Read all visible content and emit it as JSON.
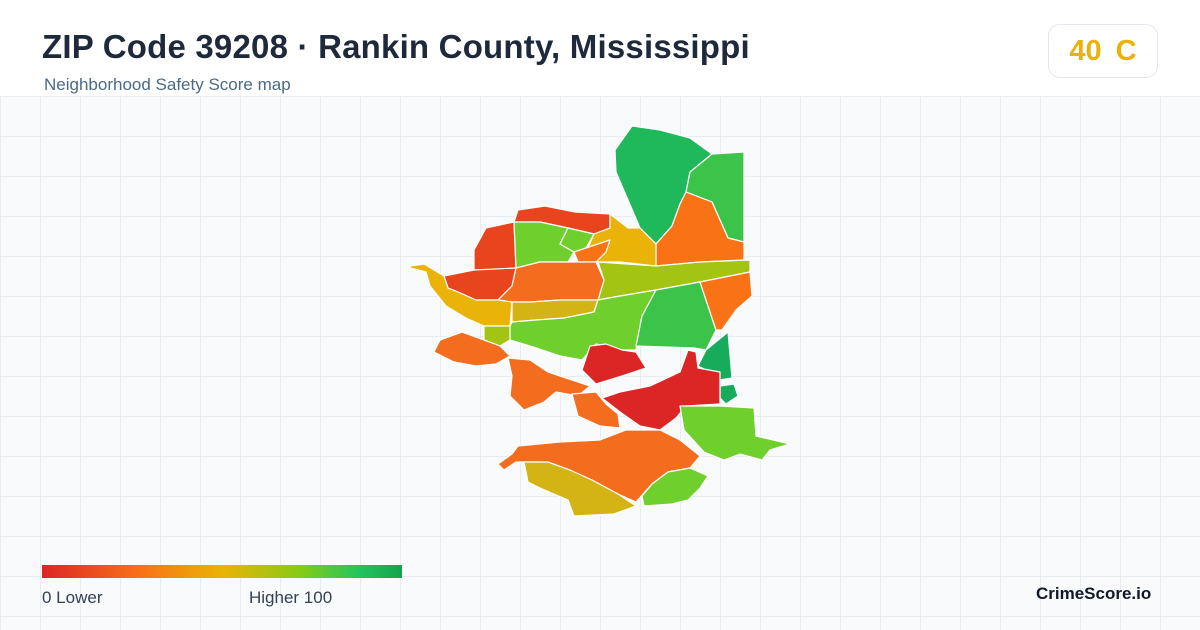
{
  "header": {
    "title": "ZIP Code 39208 · Rankin County, Mississippi",
    "subtitle": "Neighborhood Safety Score map"
  },
  "score_badge": {
    "score": "40",
    "grade": "C",
    "color": "#eab308"
  },
  "legend": {
    "min_label": "0  Lower",
    "max_label": "Higher  100",
    "colors": [
      "#dc2626",
      "#f97316",
      "#eab308",
      "#84cc16",
      "#22c55e",
      "#16a34a"
    ]
  },
  "brand": "CrimeScore.io",
  "map": {
    "grid": true,
    "region_palette": {
      "red": "#dc2626",
      "red_orange": "#e8451f",
      "orange": "#f46d1e",
      "orange_light": "#f97316",
      "amber": "#eab308",
      "mustard": "#d4b414",
      "yellow_green": "#a3c412",
      "lime": "#6fcf2c",
      "green": "#3cc44a",
      "green_dark": "#1fb85a",
      "emerald": "#17ac5c"
    }
  }
}
